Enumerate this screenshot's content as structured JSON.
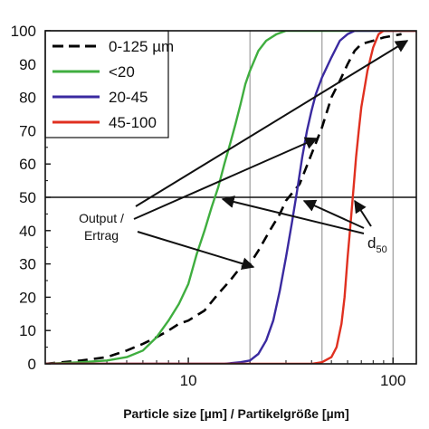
{
  "chart_data": {
    "type": "line",
    "xscale": "log",
    "xlim": [
      2,
      130
    ],
    "ylim": [
      0,
      100
    ],
    "xticks": [
      10,
      100
    ],
    "yticks": [
      0,
      10,
      20,
      30,
      40,
      50,
      60,
      70,
      80,
      90,
      100
    ],
    "xlabel": "Particle size [µm] / Partikelgröße [µm]",
    "ylabel": "",
    "grid": "vertical lines at 20, 45, 100; horizontal line at 50",
    "legend_position": "top-left",
    "series": [
      {
        "name": "0-125 µm",
        "color": "#000000",
        "style": "dashed",
        "points": [
          [
            2.0,
            0
          ],
          [
            3.0,
            1
          ],
          [
            4.0,
            2
          ],
          [
            5.0,
            4
          ],
          [
            6.0,
            6
          ],
          [
            7.0,
            8
          ],
          [
            8.0,
            10
          ],
          [
            9.0,
            12
          ],
          [
            10.0,
            13
          ],
          [
            12.0,
            16
          ],
          [
            14.0,
            21
          ],
          [
            16.0,
            25
          ],
          [
            18.0,
            29
          ],
          [
            20.0,
            30
          ],
          [
            22.0,
            34
          ],
          [
            25.0,
            40
          ],
          [
            28.0,
            45
          ],
          [
            30.0,
            49
          ],
          [
            35.0,
            54
          ],
          [
            40.0,
            63
          ],
          [
            45.0,
            71
          ],
          [
            50.0,
            80
          ],
          [
            55.0,
            85
          ],
          [
            60.0,
            90
          ],
          [
            65.0,
            94
          ],
          [
            70.0,
            96
          ],
          [
            80.0,
            97
          ],
          [
            90.0,
            98
          ],
          [
            110.0,
            99
          ]
        ]
      },
      {
        "name": "<20",
        "color": "#3fae3f",
        "style": "solid",
        "points": [
          [
            2.0,
            0
          ],
          [
            3.0,
            0.5
          ],
          [
            4.0,
            1
          ],
          [
            5.0,
            2
          ],
          [
            6.0,
            4
          ],
          [
            7.0,
            8
          ],
          [
            8.0,
            13
          ],
          [
            9.0,
            18
          ],
          [
            10.0,
            24
          ],
          [
            11.0,
            33
          ],
          [
            12.0,
            40
          ],
          [
            13.0,
            47
          ],
          [
            14.0,
            53
          ],
          [
            15.0,
            60
          ],
          [
            16.0,
            66
          ],
          [
            17.0,
            72
          ],
          [
            18.0,
            78
          ],
          [
            19.0,
            84
          ],
          [
            20.0,
            88
          ],
          [
            22.0,
            94
          ],
          [
            24.0,
            97
          ],
          [
            27.0,
            99
          ],
          [
            30.0,
            100
          ],
          [
            130.0,
            100
          ]
        ]
      },
      {
        "name": "20-45",
        "color": "#3a2aa0",
        "style": "solid",
        "points": [
          [
            2.0,
            0
          ],
          [
            15.0,
            0
          ],
          [
            18.0,
            0.5
          ],
          [
            20.0,
            1
          ],
          [
            22.0,
            3
          ],
          [
            24.0,
            7
          ],
          [
            26.0,
            13
          ],
          [
            28.0,
            22
          ],
          [
            30.0,
            32
          ],
          [
            32.0,
            42
          ],
          [
            34.0,
            52
          ],
          [
            36.0,
            62
          ],
          [
            38.0,
            70
          ],
          [
            40.0,
            76
          ],
          [
            42.0,
            81
          ],
          [
            45.0,
            86
          ],
          [
            50.0,
            92
          ],
          [
            55.0,
            97
          ],
          [
            60.0,
            99
          ],
          [
            65.0,
            100
          ],
          [
            130.0,
            100
          ]
        ]
      },
      {
        "name": "45-100",
        "color": "#e03020",
        "style": "solid",
        "points": [
          [
            2.0,
            0
          ],
          [
            40.0,
            0
          ],
          [
            45.0,
            0.5
          ],
          [
            50.0,
            2
          ],
          [
            53.0,
            5
          ],
          [
            56.0,
            12
          ],
          [
            58.0,
            20
          ],
          [
            60.0,
            32
          ],
          [
            62.0,
            42
          ],
          [
            64.0,
            52
          ],
          [
            66.0,
            62
          ],
          [
            68.0,
            70
          ],
          [
            70.0,
            77
          ],
          [
            75.0,
            88
          ],
          [
            80.0,
            95
          ],
          [
            85.0,
            99
          ],
          [
            90.0,
            100
          ],
          [
            130.0,
            100
          ]
        ]
      }
    ],
    "annotations": {
      "output_label": [
        "Output /",
        "Ertrag"
      ],
      "d50_label": "d",
      "d50_subscript": "50"
    },
    "x_tick_labels": [
      "10",
      "100"
    ],
    "y_tick_labels": [
      "0",
      "10",
      "20",
      "30",
      "40",
      "50",
      "60",
      "70",
      "80",
      "90",
      "100"
    ]
  }
}
